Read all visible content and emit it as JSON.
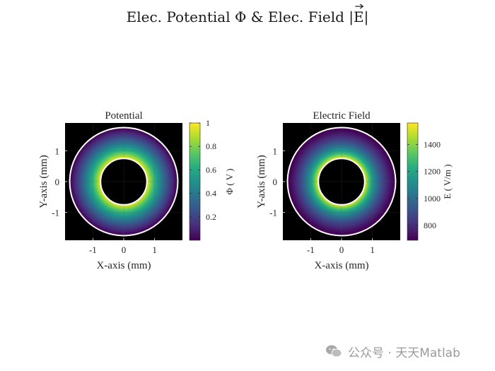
{
  "figure": {
    "title": "Elec. Potential Φ & Elec. Field |E|",
    "watermark": "公众号 · 天天Matlab"
  },
  "chart_data": [
    {
      "type": "heatmap",
      "title": "Potential",
      "xlabel": "X-axis (mm)",
      "ylabel": "Y-axis (mm)",
      "xlim": [
        -1.9,
        1.9
      ],
      "ylim": [
        -1.9,
        1.9
      ],
      "xticks": [
        -1,
        0,
        1
      ],
      "yticks": [
        -1,
        0,
        1
      ],
      "x_tick_labels": [
        "-1",
        "0",
        "1"
      ],
      "y_tick_labels": [
        "-1",
        "0",
        "1"
      ],
      "inner_radius": 0.75,
      "outer_radius": 1.75,
      "field": "potential",
      "colormap": "viridis",
      "clim": [
        0,
        1
      ],
      "colorbar": {
        "label": "Φ ( V )",
        "ticks": [
          0.2,
          0.4,
          0.6,
          0.8,
          1
        ],
        "tick_labels": [
          "0.2",
          "0.4",
          "0.6",
          "0.8",
          "1"
        ]
      },
      "background": "#000000",
      "boundary_color": "#ffffff"
    },
    {
      "type": "heatmap",
      "title": "Electric Field",
      "xlabel": "X-axis (mm)",
      "ylabel": "Y-axis (mm)",
      "xlim": [
        -1.9,
        1.9
      ],
      "ylim": [
        -1.9,
        1.9
      ],
      "xticks": [
        -1,
        0,
        1
      ],
      "yticks": [
        -1,
        0,
        1
      ],
      "x_tick_labels": [
        "-1",
        "0",
        "1"
      ],
      "y_tick_labels": [
        "-1",
        "0",
        "1"
      ],
      "inner_radius": 0.75,
      "outer_radius": 1.75,
      "field": "electric_field",
      "colormap": "viridis",
      "clim": [
        690,
        1560
      ],
      "colorbar": {
        "label": "E ( V/m )",
        "ticks": [
          800,
          1000,
          1200,
          1400
        ],
        "tick_labels": [
          "800",
          "1000",
          "1200",
          "1400"
        ]
      },
      "background": "#000000",
      "boundary_color": "#ffffff"
    }
  ]
}
